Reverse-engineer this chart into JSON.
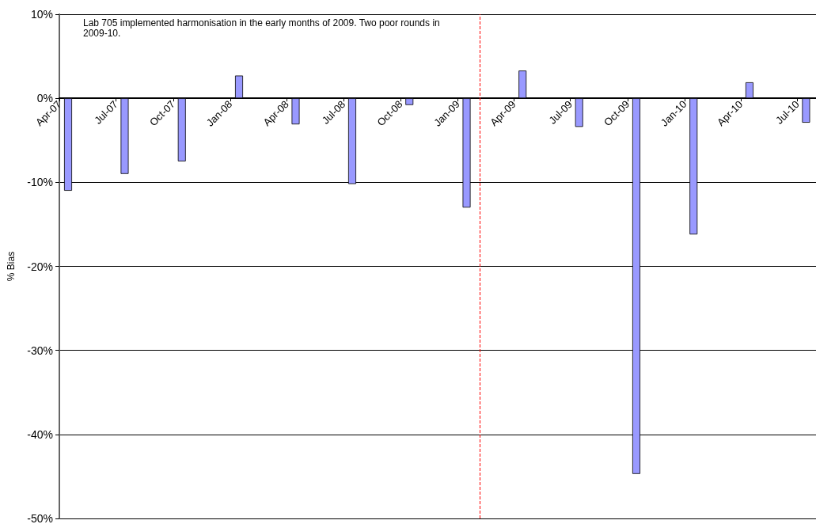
{
  "chart_data": {
    "type": "bar",
    "ylabel": "% Bias",
    "annotations": [
      "Lab 705 implemented harmonisation in the early months of 2009. Two poor rounds in 2009-10."
    ],
    "x": [
      "2007-04-15",
      "2007-07-15",
      "2007-10-15",
      "2008-01-15",
      "2008-04-15",
      "2008-07-15",
      "2008-10-15",
      "2009-01-15",
      "2009-04-15",
      "2009-07-15",
      "2009-10-15",
      "2010-01-15",
      "2010-04-15",
      "2010-07-15"
    ],
    "series": [
      {
        "color": "#9999ff",
        "values": [
          -11.0,
          -9.0,
          -7.5,
          2.7,
          -3.1,
          -10.2,
          -0.8,
          -13.0,
          3.3,
          -3.4,
          -44.7,
          -16.2,
          1.9,
          -2.9
        ]
      }
    ],
    "xlim": [
      "2007-04-01",
      "2010-07-31"
    ],
    "xticks": [
      {
        "value": "2007-04-01",
        "label": "Apr-07"
      },
      {
        "value": "2007-07-01",
        "label": "Jul-07"
      },
      {
        "value": "2007-10-01",
        "label": "Oct-07"
      },
      {
        "value": "2008-01-01",
        "label": "Jan-08"
      },
      {
        "value": "2008-04-01",
        "label": "Apr-08"
      },
      {
        "value": "2008-07-01",
        "label": "Jul-08"
      },
      {
        "value": "2008-10-01",
        "label": "Oct-08"
      },
      {
        "value": "2009-01-01",
        "label": "Jan-09"
      },
      {
        "value": "2009-04-01",
        "label": "Apr-09"
      },
      {
        "value": "2009-07-01",
        "label": "Jul-09"
      },
      {
        "value": "2009-10-01",
        "label": "Oct-09"
      },
      {
        "value": "2010-01-01",
        "label": "Jan-10"
      },
      {
        "value": "2010-04-01",
        "label": "Apr-10"
      },
      {
        "value": "2010-07-01",
        "label": "Jul-10"
      }
    ],
    "ylim": [
      -50,
      10
    ],
    "yticks": [
      {
        "value": -50,
        "label": "-50%"
      },
      {
        "value": -40,
        "label": "-40%"
      },
      {
        "value": -30,
        "label": "-30%"
      },
      {
        "value": -20,
        "label": "-20%"
      },
      {
        "value": -10,
        "label": "-10%"
      },
      {
        "value": 0,
        "label": "0%"
      },
      {
        "value": 10,
        "label": "10%"
      }
    ],
    "grid": "y",
    "ref_lines": [
      {
        "axis": "x",
        "value": "2009-02-05",
        "color": "#ff0000",
        "line_style": "dashed"
      }
    ]
  }
}
